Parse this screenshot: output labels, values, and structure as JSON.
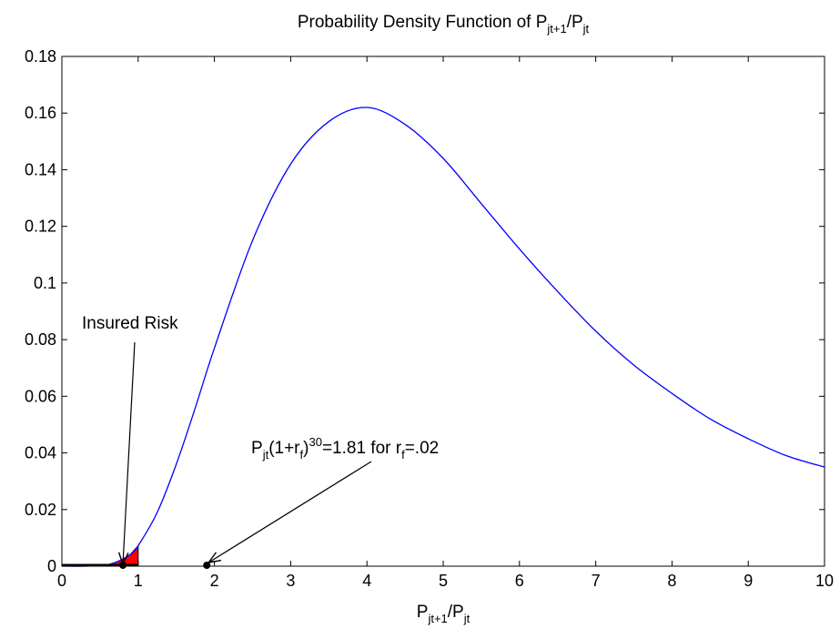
{
  "chart_data": {
    "type": "line",
    "title": {
      "main": "Probability Density Function of P",
      "sub1": "jt+1",
      "slash": "/P",
      "sub2": "jt"
    },
    "xlabel": {
      "p1": "P",
      "s1": "jt+1",
      "p2": "/P",
      "s2": "jt"
    },
    "ylabel": "",
    "xlim": [
      0,
      10
    ],
    "ylim": [
      0,
      0.18
    ],
    "x_ticks": [
      0,
      1,
      2,
      3,
      4,
      5,
      6,
      7,
      8,
      9,
      10
    ],
    "x_tick_labels": [
      "0",
      "1",
      "2",
      "3",
      "4",
      "5",
      "6",
      "7",
      "8",
      "9",
      "10"
    ],
    "y_ticks": [
      0,
      0.02,
      0.04,
      0.06,
      0.08,
      0.1,
      0.12,
      0.14,
      0.16,
      0.18
    ],
    "y_tick_labels": [
      "0",
      "0.02",
      "0.04",
      "0.06",
      "0.08",
      "0.1",
      "0.12",
      "0.14",
      "0.16",
      "0.18"
    ],
    "grid": false,
    "series": [
      {
        "color": "#0000ff",
        "x": [
          0,
          0.3,
          0.5,
          0.6,
          0.7,
          0.8,
          0.9,
          1.0,
          1.25,
          1.5,
          1.75,
          2.0,
          2.5,
          3.0,
          3.5,
          4.0,
          4.5,
          5.0,
          5.5,
          6.0,
          6.5,
          7.0,
          7.5,
          8.0,
          8.5,
          9.0,
          9.5,
          10.0
        ],
        "y": [
          0,
          0,
          0.0002,
          0.0005,
          0.0013,
          0.0025,
          0.0042,
          0.0072,
          0.019,
          0.036,
          0.056,
          0.077,
          0.115,
          0.142,
          0.157,
          0.162,
          0.156,
          0.144,
          0.128,
          0.112,
          0.097,
          0.083,
          0.071,
          0.061,
          0.052,
          0.045,
          0.039,
          0.035
        ]
      }
    ],
    "shaded_region": {
      "color": "#ff0000",
      "x_from": 0.6,
      "x_to": 1.0,
      "label": "Insured Risk"
    },
    "annotations": [
      {
        "name": "insured-risk",
        "text": "Insured Risk",
        "point_x": 0.8,
        "point_y": 0
      },
      {
        "name": "threshold",
        "text_p": "P",
        "text_s1": "jt",
        "text_m": "(1+r",
        "text_s2": "f",
        "text_m2": ")",
        "text_sup": "30",
        "text_m3": "=1.81 for r",
        "text_s3": "f",
        "text_end": "=.02",
        "point_x": 1.9,
        "point_y": 0
      }
    ],
    "markers": [
      {
        "x": 0.8,
        "y": 0,
        "color": "#000000"
      },
      {
        "x": 1.9,
        "y": 0,
        "color": "#000000"
      }
    ]
  }
}
